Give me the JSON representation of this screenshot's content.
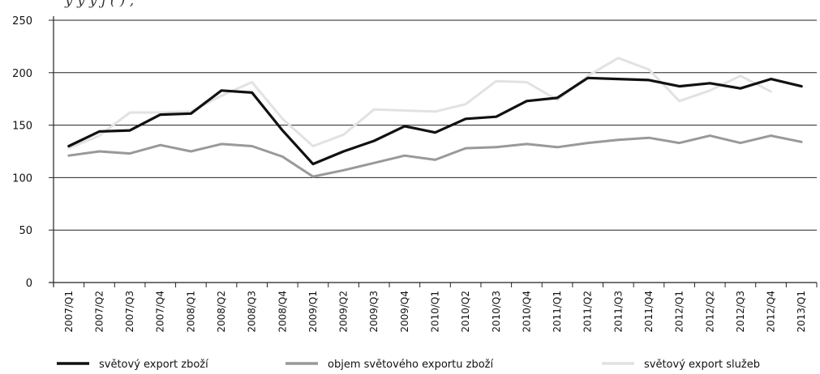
{
  "top_text": "y y y j (  ) ,",
  "chart_data": {
    "type": "line",
    "title": "",
    "xlabel": "",
    "ylabel": "",
    "ylim": [
      0,
      250
    ],
    "yticks": [
      "0",
      "50",
      "100",
      "150",
      "200",
      "250"
    ],
    "grid": "horizontal",
    "legend_position": "bottom",
    "categories": [
      "2007/Q1",
      "2007/Q2",
      "2007/Q3",
      "2007/Q4",
      "2008/Q1",
      "2008/Q2",
      "2008/Q3",
      "2008/Q4",
      "2009/Q1",
      "2009/Q2",
      "2009/Q3",
      "2009/Q4",
      "2010/Q1",
      "2010/Q2",
      "2010/Q3",
      "2010/Q4",
      "2011/Q1",
      "2011/Q2",
      "2011/Q3",
      "2011/Q4",
      "2012/Q1",
      "2012/Q2",
      "2012/Q3",
      "2012/Q4",
      "2013/Q1"
    ],
    "series": [
      {
        "name": "světový export zboží",
        "color": "#111111",
        "values": [
          130,
          144,
          145,
          160,
          161,
          183,
          181,
          145,
          113,
          125,
          135,
          149,
          143,
          156,
          158,
          173,
          176,
          195,
          194,
          193,
          187,
          190,
          185,
          194,
          187
        ]
      },
      {
        "name": "objem světového exportu zboží",
        "color": "#999999",
        "values": [
          121,
          125,
          123,
          131,
          125,
          132,
          130,
          120,
          101,
          107,
          114,
          121,
          117,
          128,
          129,
          132,
          129,
          133,
          136,
          138,
          133,
          140,
          133,
          140,
          134
        ]
      },
      {
        "name": "světový export služeb",
        "color": "#e2e2e2",
        "values": [
          128,
          140,
          162,
          162,
          163,
          178,
          191,
          156,
          130,
          141,
          165,
          164,
          163,
          170,
          192,
          191,
          174,
          197,
          214,
          203,
          173,
          183,
          197,
          182,
          null
        ]
      }
    ]
  }
}
